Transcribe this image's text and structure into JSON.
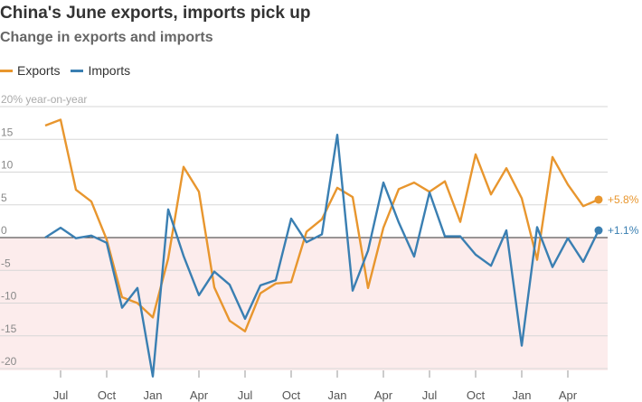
{
  "chart_data": {
    "type": "line",
    "title": "China's June exports, imports pick up",
    "subtitle": "Change in exports and imports",
    "ylabel": "20% year-on-year",
    "ylim": [
      -22.5,
      20
    ],
    "y_ticks": [
      20,
      15,
      10,
      5,
      0,
      -5,
      -10,
      -15,
      -20
    ],
    "y_tick_labels": [
      "",
      "15",
      "10",
      "5",
      "0",
      "-5",
      "-10",
      "-15",
      "-20"
    ],
    "x_ticks": [
      {
        "label": "Jul",
        "index": 1
      },
      {
        "label": "Oct",
        "index": 4
      },
      {
        "label": "Jan",
        "index": 7
      },
      {
        "label": "Apr",
        "index": 10
      },
      {
        "label": "Jul",
        "index": 13
      },
      {
        "label": "Oct",
        "index": 16
      },
      {
        "label": "Jan",
        "index": 19
      },
      {
        "label": "Apr",
        "index": 22
      },
      {
        "label": "Jul",
        "index": 25
      },
      {
        "label": "Oct",
        "index": 28
      },
      {
        "label": "Jan",
        "index": 31
      },
      {
        "label": "Apr",
        "index": 34
      }
    ],
    "negative_region_color": "#fcecec",
    "series": [
      {
        "name": "Exports",
        "color": "#e8962e",
        "end_label": "+5.8%",
        "values": [
          17.1,
          18.0,
          7.3,
          5.5,
          -0.3,
          -9.1,
          -10.0,
          -12.2,
          -3.2,
          10.8,
          7.0,
          -7.6,
          -12.7,
          -14.3,
          -8.5,
          -7.0,
          -6.8,
          0.9,
          2.8,
          7.6,
          6.2,
          -7.7,
          1.5,
          7.4,
          8.4,
          7.0,
          8.6,
          2.4,
          12.7,
          6.6,
          10.6,
          6.0,
          -3.4,
          12.3,
          8.1,
          4.8,
          5.8
        ]
      },
      {
        "name": "Imports",
        "color": "#3a7fb2",
        "end_label": "+1.1%",
        "values": [
          0.0,
          1.5,
          -0.1,
          0.3,
          -0.8,
          -10.7,
          -7.7,
          -21.2,
          4.3,
          -2.8,
          -8.8,
          -5.2,
          -7.2,
          -12.4,
          -7.3,
          -6.5,
          2.9,
          -0.7,
          0.5,
          15.7,
          -8.1,
          -2.0,
          8.4,
          2.3,
          -2.9,
          6.9,
          0.2,
          0.2,
          -2.6,
          -4.3,
          1.1,
          -16.5,
          1.6,
          -4.5,
          -0.1,
          -3.7,
          1.1
        ]
      }
    ]
  }
}
